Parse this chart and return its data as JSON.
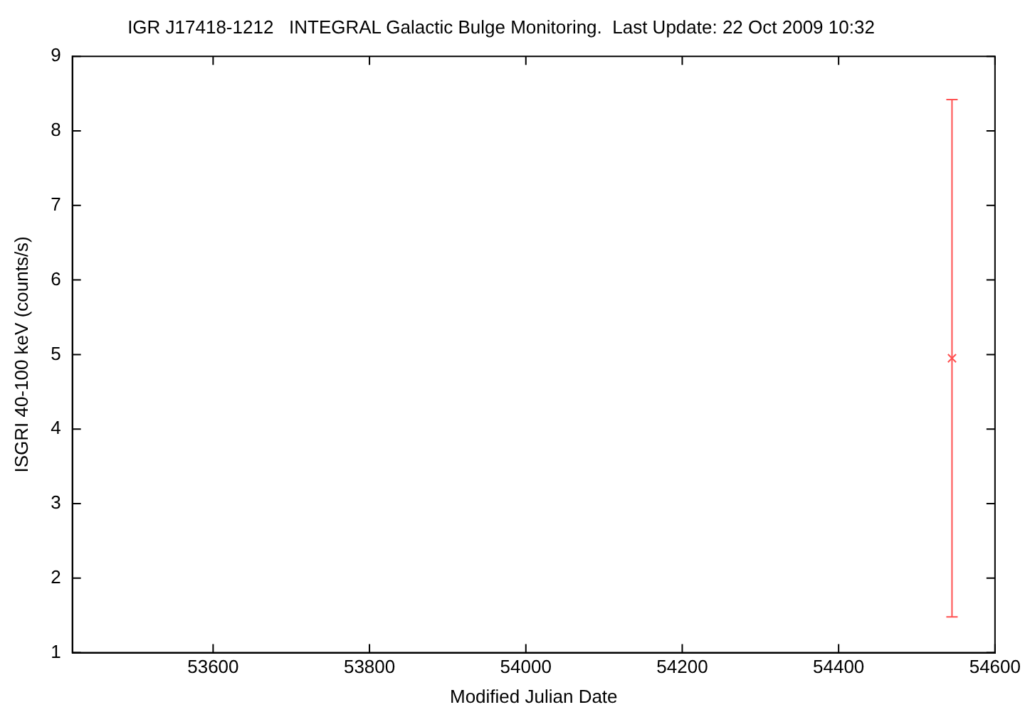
{
  "chart_data": {
    "type": "scatter",
    "title": "IGR J17418-1212   INTEGRAL Galactic Bulge Monitoring.  Last Update: 22 Oct 2009 10:32",
    "xlabel": "Modified Julian Date",
    "ylabel": "ISGRI 40-100 keV (counts/s)",
    "series": [
      {
        "color": "#ff5050",
        "x": [
          54545
        ],
        "values": [
          4.95
        ],
        "errors": [
          3.47
        ]
      }
    ],
    "xlim": [
      53420,
      54600
    ],
    "xticks": [
      53600,
      53800,
      54000,
      54200,
      54400,
      54600
    ],
    "ylim": [
      1,
      9
    ],
    "yticks": [
      1,
      2,
      3,
      4,
      5,
      6,
      7,
      8,
      9
    ],
    "marker": "cross",
    "grid": false,
    "legend": false
  }
}
